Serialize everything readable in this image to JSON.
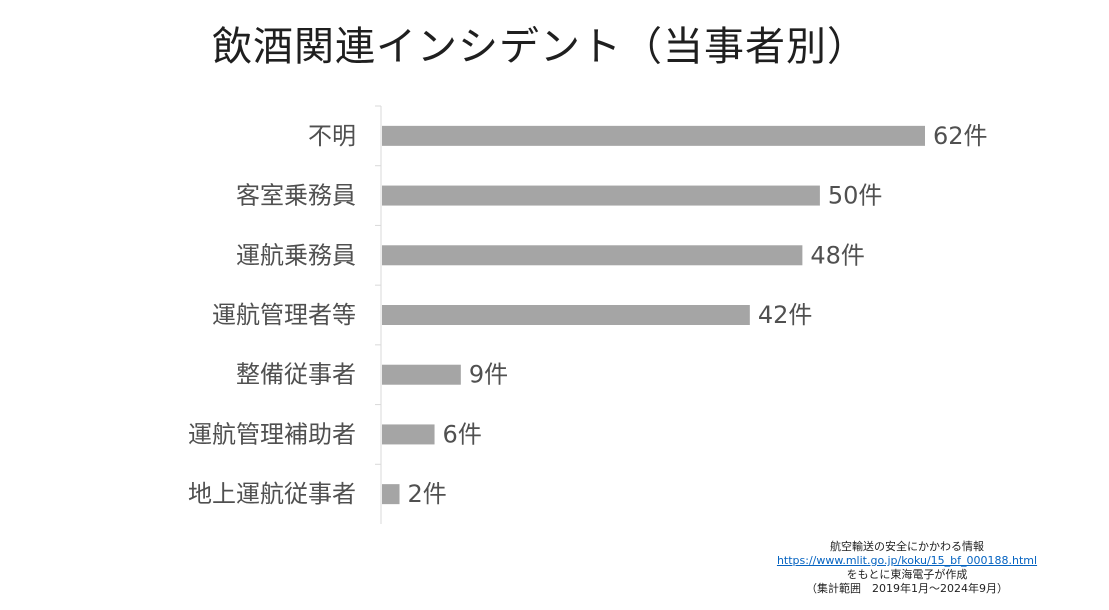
{
  "chart_data": {
    "type": "bar",
    "orientation": "horizontal",
    "title": "飲酒関連インシデント（当事者別）",
    "categories": [
      "不明",
      "客室乗務員",
      "運航乗務員",
      "運航管理者等",
      "整備従事者",
      "運航管理補助者",
      "地上運航従事者"
    ],
    "values": [
      62,
      50,
      48,
      42,
      9,
      6,
      2
    ],
    "value_labels": [
      "62件",
      "50件",
      "48件",
      "42件",
      "9件",
      "6件",
      "2件"
    ],
    "xlim": [
      0,
      62
    ],
    "grid": false,
    "legend": "none",
    "bar_color": "#a5a5a5",
    "axis_color": "#d9d9d9"
  },
  "source": {
    "line1": "航空輸送の安全にかかわる情報",
    "url": "https://www.mlit.go.jp/koku/15_bf_000188.html",
    "line3": "をもとに東海電子が作成",
    "line4": "（集計範囲　2019年1月～2024年9月）"
  }
}
